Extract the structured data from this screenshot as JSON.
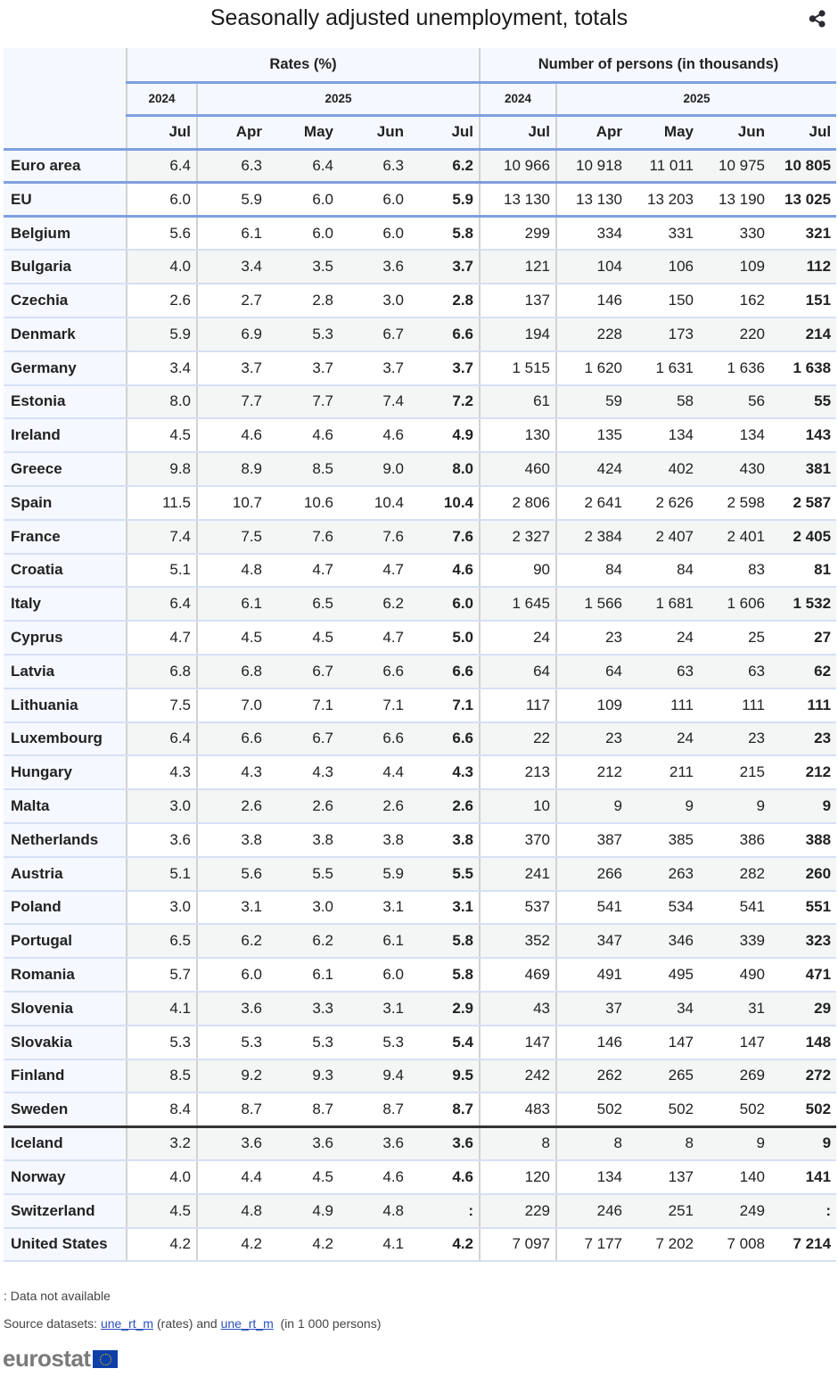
{
  "header": {
    "title": "Seasonally adjusted unemployment, totals",
    "share_icon": "share-icon"
  },
  "table": {
    "group_headers": [
      "Rates (%)",
      "Number of persons (in thousands)"
    ],
    "year_headers": {
      "rates": [
        "2024",
        "2025"
      ],
      "persons": [
        "2024",
        "2025"
      ]
    },
    "month_headers": [
      "Jul",
      "Apr",
      "May",
      "Jun",
      "Jul",
      "Jul",
      "Apr",
      "May",
      "Jun",
      "Jul"
    ],
    "rows": [
      {
        "name": "Euro area",
        "rates": [
          "6.4",
          "6.3",
          "6.4",
          "6.3",
          "6.2"
        ],
        "persons": [
          "10 966",
          "10 918",
          "11 011",
          "10 975",
          "10 805"
        ]
      },
      {
        "name": "EU",
        "rates": [
          "6.0",
          "5.9",
          "6.0",
          "6.0",
          "5.9"
        ],
        "persons": [
          "13 130",
          "13 130",
          "13 203",
          "13 190",
          "13 025"
        ]
      },
      {
        "name": "Belgium",
        "rates": [
          "5.6",
          "6.1",
          "6.0",
          "6.0",
          "5.8"
        ],
        "persons": [
          "299",
          "334",
          "331",
          "330",
          "321"
        ]
      },
      {
        "name": "Bulgaria",
        "rates": [
          "4.0",
          "3.4",
          "3.5",
          "3.6",
          "3.7"
        ],
        "persons": [
          "121",
          "104",
          "106",
          "109",
          "112"
        ]
      },
      {
        "name": "Czechia",
        "rates": [
          "2.6",
          "2.7",
          "2.8",
          "3.0",
          "2.8"
        ],
        "persons": [
          "137",
          "146",
          "150",
          "162",
          "151"
        ]
      },
      {
        "name": "Denmark",
        "rates": [
          "5.9",
          "6.9",
          "5.3",
          "6.7",
          "6.6"
        ],
        "persons": [
          "194",
          "228",
          "173",
          "220",
          "214"
        ]
      },
      {
        "name": "Germany",
        "rates": [
          "3.4",
          "3.7",
          "3.7",
          "3.7",
          "3.7"
        ],
        "persons": [
          "1 515",
          "1 620",
          "1 631",
          "1 636",
          "1 638"
        ]
      },
      {
        "name": "Estonia",
        "rates": [
          "8.0",
          "7.7",
          "7.7",
          "7.4",
          "7.2"
        ],
        "persons": [
          "61",
          "59",
          "58",
          "56",
          "55"
        ]
      },
      {
        "name": "Ireland",
        "rates": [
          "4.5",
          "4.6",
          "4.6",
          "4.6",
          "4.9"
        ],
        "persons": [
          "130",
          "135",
          "134",
          "134",
          "143"
        ]
      },
      {
        "name": "Greece",
        "rates": [
          "9.8",
          "8.9",
          "8.5",
          "9.0",
          "8.0"
        ],
        "persons": [
          "460",
          "424",
          "402",
          "430",
          "381"
        ]
      },
      {
        "name": "Spain",
        "rates": [
          "11.5",
          "10.7",
          "10.6",
          "10.4",
          "10.4"
        ],
        "persons": [
          "2 806",
          "2 641",
          "2 626",
          "2 598",
          "2 587"
        ]
      },
      {
        "name": "France",
        "rates": [
          "7.4",
          "7.5",
          "7.6",
          "7.6",
          "7.6"
        ],
        "persons": [
          "2 327",
          "2 384",
          "2 407",
          "2 401",
          "2 405"
        ]
      },
      {
        "name": "Croatia",
        "rates": [
          "5.1",
          "4.8",
          "4.7",
          "4.7",
          "4.6"
        ],
        "persons": [
          "90",
          "84",
          "84",
          "83",
          "81"
        ]
      },
      {
        "name": "Italy",
        "rates": [
          "6.4",
          "6.1",
          "6.5",
          "6.2",
          "6.0"
        ],
        "persons": [
          "1 645",
          "1 566",
          "1 681",
          "1 606",
          "1 532"
        ]
      },
      {
        "name": "Cyprus",
        "rates": [
          "4.7",
          "4.5",
          "4.5",
          "4.7",
          "5.0"
        ],
        "persons": [
          "24",
          "23",
          "24",
          "25",
          "27"
        ]
      },
      {
        "name": "Latvia",
        "rates": [
          "6.8",
          "6.8",
          "6.7",
          "6.6",
          "6.6"
        ],
        "persons": [
          "64",
          "64",
          "63",
          "63",
          "62"
        ]
      },
      {
        "name": "Lithuania",
        "rates": [
          "7.5",
          "7.0",
          "7.1",
          "7.1",
          "7.1"
        ],
        "persons": [
          "117",
          "109",
          "111",
          "111",
          "111"
        ]
      },
      {
        "name": "Luxembourg",
        "rates": [
          "6.4",
          "6.6",
          "6.7",
          "6.6",
          "6.6"
        ],
        "persons": [
          "22",
          "23",
          "24",
          "23",
          "23"
        ]
      },
      {
        "name": "Hungary",
        "rates": [
          "4.3",
          "4.3",
          "4.3",
          "4.4",
          "4.3"
        ],
        "persons": [
          "213",
          "212",
          "211",
          "215",
          "212"
        ]
      },
      {
        "name": "Malta",
        "rates": [
          "3.0",
          "2.6",
          "2.6",
          "2.6",
          "2.6"
        ],
        "persons": [
          "10",
          "9",
          "9",
          "9",
          "9"
        ]
      },
      {
        "name": "Netherlands",
        "rates": [
          "3.6",
          "3.8",
          "3.8",
          "3.8",
          "3.8"
        ],
        "persons": [
          "370",
          "387",
          "385",
          "386",
          "388"
        ]
      },
      {
        "name": "Austria",
        "rates": [
          "5.1",
          "5.6",
          "5.5",
          "5.9",
          "5.5"
        ],
        "persons": [
          "241",
          "266",
          "263",
          "282",
          "260"
        ]
      },
      {
        "name": "Poland",
        "rates": [
          "3.0",
          "3.1",
          "3.0",
          "3.1",
          "3.1"
        ],
        "persons": [
          "537",
          "541",
          "534",
          "541",
          "551"
        ]
      },
      {
        "name": "Portugal",
        "rates": [
          "6.5",
          "6.2",
          "6.2",
          "6.1",
          "5.8"
        ],
        "persons": [
          "352",
          "347",
          "346",
          "339",
          "323"
        ]
      },
      {
        "name": "Romania",
        "rates": [
          "5.7",
          "6.0",
          "6.1",
          "6.0",
          "5.8"
        ],
        "persons": [
          "469",
          "491",
          "495",
          "490",
          "471"
        ]
      },
      {
        "name": "Slovenia",
        "rates": [
          "4.1",
          "3.6",
          "3.3",
          "3.1",
          "2.9"
        ],
        "persons": [
          "43",
          "37",
          "34",
          "31",
          "29"
        ]
      },
      {
        "name": "Slovakia",
        "rates": [
          "5.3",
          "5.3",
          "5.3",
          "5.3",
          "5.4"
        ],
        "persons": [
          "147",
          "146",
          "147",
          "147",
          "148"
        ]
      },
      {
        "name": "Finland",
        "rates": [
          "8.5",
          "9.2",
          "9.3",
          "9.4",
          "9.5"
        ],
        "persons": [
          "242",
          "262",
          "265",
          "269",
          "272"
        ]
      },
      {
        "name": "Sweden",
        "rates": [
          "8.4",
          "8.7",
          "8.7",
          "8.7",
          "8.7"
        ],
        "persons": [
          "483",
          "502",
          "502",
          "502",
          "502"
        ]
      },
      {
        "name": "Iceland",
        "rates": [
          "3.2",
          "3.6",
          "3.6",
          "3.6",
          "3.6"
        ],
        "persons": [
          "8",
          "8",
          "8",
          "9",
          "9"
        ]
      },
      {
        "name": "Norway",
        "rates": [
          "4.0",
          "4.4",
          "4.5",
          "4.6",
          "4.6"
        ],
        "persons": [
          "120",
          "134",
          "137",
          "140",
          "141"
        ]
      },
      {
        "name": "Switzerland",
        "rates": [
          "4.5",
          "4.8",
          "4.9",
          "4.8",
          ":"
        ],
        "persons": [
          "229",
          "246",
          "251",
          "249",
          ":"
        ]
      },
      {
        "name": "United States",
        "rates": [
          "4.2",
          "4.2",
          "4.2",
          "4.1",
          "4.2"
        ],
        "persons": [
          "7 097",
          "7 177",
          "7 202",
          "7 008",
          "7 214"
        ]
      }
    ]
  },
  "footer": {
    "note": ": Data not available",
    "source_prefix": "Source datasets: ",
    "link1": "une_rt_m",
    "middle": " (rates) and ",
    "link2": "une_rt_m",
    "suffix": "  (in 1 000 persons)",
    "logo_text": "eurostat"
  },
  "colors": {
    "header_bg": "#f5f8fe",
    "accent_line": "#7fa0e0",
    "alt_row": "#f4f5f5",
    "link": "#2a4fc0",
    "eu_flag": "#0e3fa8"
  }
}
